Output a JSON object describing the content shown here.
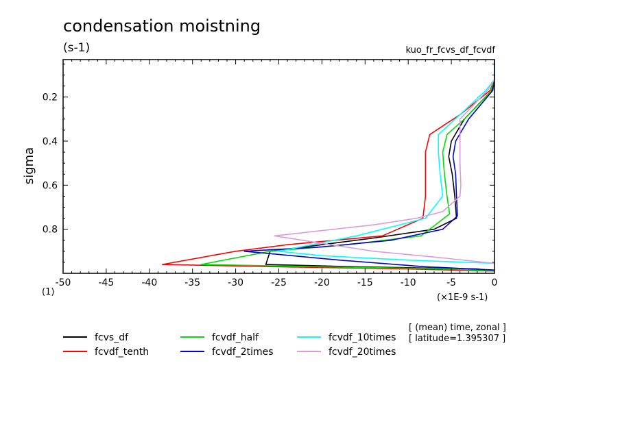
{
  "chart_data": {
    "type": "line",
    "title": "condensation moistning",
    "units_label": "(s-1)",
    "experiment_label": "kuo_fr_fcvs_df_fcvdf",
    "ylabel": "sigma",
    "y_origin_label": "(1)",
    "xlabel": "(×1E-9 s-1)",
    "xlim": [
      -50,
      0
    ],
    "ylim": [
      1.0,
      0.03
    ],
    "x_ticks": [
      -50,
      -45,
      -40,
      -35,
      -30,
      -25,
      -20,
      -15,
      -10,
      -5,
      0
    ],
    "x_tick_labels": [
      "-50",
      "-45",
      "-40",
      "-35",
      "-30",
      "-25",
      "-20",
      "-15",
      "-10",
      "-5",
      "0"
    ],
    "y_ticks": [
      0.2,
      0.4,
      0.6,
      0.8
    ],
    "y_tick_labels": [
      "0.2",
      "0.4",
      "0.6",
      "0.8"
    ],
    "annotation_lines": [
      "[ (mean) time, zonal ]",
      "[ latitude=1.395307 ]"
    ],
    "legend_position": "bottom-left",
    "series": [
      {
        "name": "fcvs_df",
        "color": "#000000",
        "points": [
          [
            0,
            0.03
          ],
          [
            0,
            0.12
          ],
          [
            -0.3,
            0.17
          ],
          [
            -3.5,
            0.3
          ],
          [
            -5,
            0.4
          ],
          [
            -5.3,
            0.47
          ],
          [
            -4.9,
            0.55
          ],
          [
            -4.6,
            0.65
          ],
          [
            -4.4,
            0.75
          ],
          [
            -7,
            0.8
          ],
          [
            -14,
            0.84
          ],
          [
            -20,
            0.87
          ],
          [
            -26,
            0.9
          ],
          [
            -26.5,
            0.96
          ],
          [
            -16,
            0.97
          ],
          [
            -2,
            0.98
          ],
          [
            0,
            0.99
          ]
        ]
      },
      {
        "name": "fcvdf_tenth",
        "color": "#ff0000",
        "points": [
          [
            0,
            0.03
          ],
          [
            0,
            0.12
          ],
          [
            -0.5,
            0.17
          ],
          [
            -4,
            0.28
          ],
          [
            -7.5,
            0.37
          ],
          [
            -8,
            0.45
          ],
          [
            -8,
            0.55
          ],
          [
            -8,
            0.65
          ],
          [
            -8.3,
            0.75
          ],
          [
            -13,
            0.83
          ],
          [
            -24,
            0.87
          ],
          [
            -30,
            0.9
          ],
          [
            -38.5,
            0.96
          ],
          [
            -25,
            0.97
          ],
          [
            -10,
            0.98
          ],
          [
            0,
            0.99
          ]
        ]
      },
      {
        "name": "fcvdf_half",
        "color": "#00dd00",
        "points": [
          [
            0,
            0.03
          ],
          [
            0,
            0.12
          ],
          [
            -0.5,
            0.18
          ],
          [
            -3.5,
            0.3
          ],
          [
            -5.5,
            0.37
          ],
          [
            -6,
            0.45
          ],
          [
            -5.8,
            0.55
          ],
          [
            -5.5,
            0.65
          ],
          [
            -5.2,
            0.73
          ],
          [
            -8.5,
            0.83
          ],
          [
            -17,
            0.87
          ],
          [
            -26,
            0.9
          ],
          [
            -34,
            0.96
          ],
          [
            -20,
            0.97
          ],
          [
            -5,
            0.98
          ],
          [
            0,
            0.99
          ]
        ]
      },
      {
        "name": "fcvdf_2times",
        "color": "#0000cc",
        "points": [
          [
            0,
            0.03
          ],
          [
            0,
            0.12
          ],
          [
            -0.2,
            0.17
          ],
          [
            -3,
            0.3
          ],
          [
            -4.5,
            0.4
          ],
          [
            -4.8,
            0.47
          ],
          [
            -4.5,
            0.55
          ],
          [
            -4.4,
            0.65
          ],
          [
            -4.3,
            0.74
          ],
          [
            -6,
            0.8
          ],
          [
            -12,
            0.85
          ],
          [
            -20,
            0.88
          ],
          [
            -29,
            0.9
          ],
          [
            -18,
            0.94
          ],
          [
            -8,
            0.97
          ],
          [
            0,
            0.985
          ]
        ]
      },
      {
        "name": "fcvdf_10times",
        "color": "#00ffff",
        "points": [
          [
            0,
            0.03
          ],
          [
            0,
            0.12
          ],
          [
            -1,
            0.17
          ],
          [
            -4,
            0.28
          ],
          [
            -6.5,
            0.37
          ],
          [
            -6.5,
            0.45
          ],
          [
            -6.3,
            0.55
          ],
          [
            -6,
            0.65
          ],
          [
            -8,
            0.75
          ],
          [
            -16,
            0.83
          ],
          [
            -25,
            0.9
          ],
          [
            -20,
            0.92
          ],
          [
            -10,
            0.94
          ],
          [
            0,
            0.955
          ]
        ]
      },
      {
        "name": "fcvdf_20times",
        "color": "#dd99dd",
        "points": [
          [
            0,
            0.03
          ],
          [
            0,
            0.12
          ],
          [
            -0.8,
            0.17
          ],
          [
            -4,
            0.3
          ],
          [
            -4,
            0.4
          ],
          [
            -4,
            0.5
          ],
          [
            -3.9,
            0.6
          ],
          [
            -4,
            0.65
          ],
          [
            -6,
            0.72
          ],
          [
            -9,
            0.75
          ],
          [
            -14,
            0.78
          ],
          [
            -25.5,
            0.83
          ],
          [
            -19,
            0.87
          ],
          [
            -14,
            0.9
          ],
          [
            -6,
            0.93
          ],
          [
            0,
            0.955
          ]
        ]
      }
    ]
  }
}
